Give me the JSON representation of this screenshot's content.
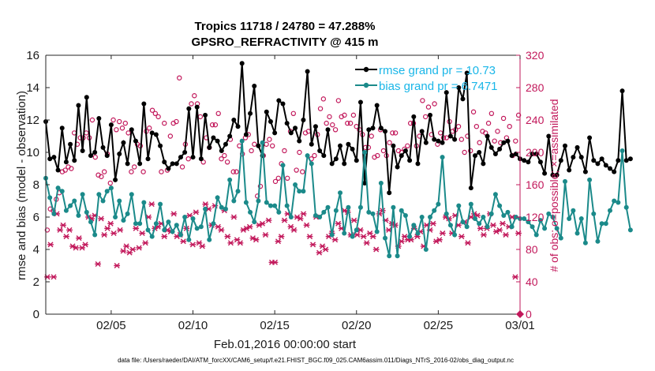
{
  "chart_data": {
    "type": "line",
    "title": "Tropics 11718 / 24780 = 47.288%",
    "subtitle": "GPSRO_REFRACTIVITY @ 415 m",
    "xlabel": "Feb.01,2016 00:00:00 start",
    "ylabel": "rmse and bias (model - observation)",
    "ylabel_right": "# of obs: o=possible; ×=assimilated",
    "footer": "data file: /Users/raeder/DAI/ATM_forcXX/CAM6_setup/f.e21.FHIST_BGC.f09_025.CAM6assim.011/Diags_NTrS_2016-02/obs_diag_output.nc",
    "ylim": [
      0,
      16
    ],
    "ylim_right": [
      0,
      320
    ],
    "xlim": [
      1,
      30
    ],
    "x_ticks": [
      5,
      10,
      15,
      20,
      25,
      30
    ],
    "x_tick_labels": [
      "02/05",
      "02/10",
      "02/15",
      "02/20",
      "02/25",
      "03/01"
    ],
    "y_ticks": [
      0,
      2,
      4,
      6,
      8,
      10,
      12,
      14,
      16
    ],
    "y_tick_labels": [
      "0",
      "2",
      "4",
      "6",
      "8",
      "10",
      "12",
      "14",
      "16"
    ],
    "y_right_ticks": [
      0,
      40,
      80,
      120,
      160,
      200,
      240,
      280,
      320
    ],
    "y_right_tick_labels": [
      "0",
      "40",
      "80",
      "120",
      "160",
      "200",
      "240",
      "280",
      "320"
    ],
    "legend": [
      "rmse grand pr = 10.73",
      "bias grand pr = 6.7471"
    ],
    "x_start": 1.0,
    "x_step": 0.25,
    "series": [
      {
        "name": "rmse",
        "color": "#000000",
        "values": [
          11.9,
          9.6,
          9.7,
          8.9,
          11.5,
          9.4,
          10.5,
          9.5,
          12.9,
          10.1,
          13.4,
          9.8,
          10.0,
          12.1,
          10.3,
          9.8,
          11.7,
          8.3,
          9.9,
          10.6,
          9.3,
          11.4,
          10.7,
          9.3,
          13.0,
          9.6,
          11.2,
          11.1,
          10.4,
          9.4,
          9.0,
          9.3,
          9.3,
          9.7,
          10.0,
          12.7,
          9.7,
          12.8,
          9.6,
          12.3,
          10.3,
          10.9,
          10.7,
          10.1,
          10.5,
          11.0,
          12.0,
          11.6,
          15.5,
          11.1,
          12.4,
          14.1,
          10.4,
          9.8,
          12.5,
          11.9,
          11.2,
          13.2,
          13.0,
          11.8,
          11.2,
          11.5,
          10.7,
          12.0,
          15.0,
          10.5,
          11.6,
          10.1,
          9.8,
          11.4,
          9.3,
          9.6,
          10.4,
          9.3,
          10.5,
          10.2,
          9.5,
          13.1,
          8.1,
          11.4,
          11.5,
          12.9,
          11.5,
          11.3,
          7.5,
          10.4,
          9.1,
          9.8,
          10.1,
          9.5,
          12.2,
          9.3,
          11.3,
          10.6,
          12.3,
          10.8,
          10.7,
          10.6,
          13.7,
          11.0,
          10.8,
          14.0,
          13.3,
          14.9,
          7.8,
          9.8,
          10.0,
          9.3,
          11.0,
          10.3,
          9.9,
          10.2,
          10.6,
          10.7,
          9.8,
          9.9,
          9.6,
          9.5,
          9.4,
          9.9,
          9.9,
          9.4,
          8.7,
          11.0,
          8.6,
          8.6,
          9.5,
          10.4,
          8.9,
          9.7,
          10.3,
          9.7,
          8.8,
          10.9,
          9.5,
          9.3,
          9.6,
          9.2,
          9.0,
          8.8,
          9.5,
          13.8,
          9.5,
          9.6
        ]
      },
      {
        "name": "bias",
        "color": "#1b8a8a",
        "values": [
          8.4,
          7.2,
          6.2,
          7.8,
          7.6,
          6.4,
          6.7,
          7.0,
          6.1,
          7.4,
          6.3,
          5.7,
          4.9,
          7.4,
          7.0,
          7.6,
          7.8,
          6.0,
          7.0,
          5.8,
          6.2,
          7.4,
          5.6,
          5.6,
          6.9,
          5.2,
          4.8,
          5.6,
          6.8,
          5.2,
          5.7,
          5.1,
          5.5,
          4.9,
          6.0,
          4.6,
          5.9,
          5.3,
          5.4,
          6.5,
          4.6,
          5.6,
          7.2,
          6.6,
          6.5,
          8.3,
          7.0,
          7.6,
          10.7,
          6.9,
          6.3,
          5.7,
          7.0,
          10.6,
          6.9,
          6.7,
          6.7,
          6.3,
          9.2,
          6.7,
          6.0,
          8.0,
          7.6,
          7.6,
          9.8,
          9.3,
          6.1,
          6.0,
          6.3,
          6.6,
          4.9,
          6.4,
          7.5,
          5.0,
          6.6,
          4.8,
          5.2,
          6.6,
          10.0,
          6.3,
          6.2,
          5.1,
          8.1,
          4.7,
          3.6,
          6.6,
          3.6,
          6.4,
          6.1,
          4.8,
          5.5,
          5.0,
          6.0,
          4.0,
          6.0,
          6.4,
          6.8,
          9.7,
          6.2,
          5.5,
          4.9,
          6.7,
          5.7,
          5.4,
          6.8,
          5.9,
          5.6,
          6.0,
          5.4,
          6.2,
          7.4,
          6.7,
          6.1,
          6.3,
          5.4,
          6.0,
          5.9,
          5.9,
          5.7,
          5.4,
          4.9,
          5.8,
          5.3,
          6.2,
          6.0,
          5.3,
          4.7,
          8.2,
          5.9,
          6.4,
          5.0,
          5.9,
          4.4,
          8.3,
          6.2,
          4.5,
          5.6,
          5.6,
          6.4,
          7.0,
          6.9,
          10.1,
          6.6,
          5.2
        ]
      }
    ],
    "obs_possible": {
      "color": "#c2185b",
      "marker": "o",
      "values": [
        104,
        130,
        128,
        142,
        150,
        176,
        178,
        182,
        180,
        224,
        210,
        218,
        218,
        224,
        218,
        240,
        194,
        172,
        170,
        176,
        198,
        162,
        240,
        228,
        238,
        230,
        236,
        224,
        176,
        182,
        210,
        208,
        176,
        226,
        230,
        252,
        248,
        244,
        176,
        236,
        178,
        220,
        236,
        238,
        292,
        182,
        210,
        192,
        260,
        270,
        260,
        244,
        188,
        218,
        206,
        234,
        234,
        248,
        192,
        196,
        188,
        216,
        176,
        176,
        208,
        198,
        218,
        222,
        202,
        210,
        146,
        158,
        196,
        210,
        216,
        208,
        164,
        168,
        186,
        202,
        168,
        226,
        248,
        178,
        200,
        176,
        224,
        226,
        192,
        196,
        222,
        254,
        266,
        236,
        244,
        234,
        228,
        264,
        244,
        246,
        236,
        236,
        246,
        232,
        228,
        222,
        206,
        206,
        220,
        194,
        196,
        228,
        202,
        196,
        212,
        224,
        224,
        202,
        200,
        204,
        208,
        236,
        236,
        208,
        220,
        264,
        244,
        256,
        222,
        260,
        210,
        224,
        218,
        218,
        238,
        226,
        228,
        232,
        216,
        200,
        220,
        202,
        250,
        232,
        212,
        226,
        224,
        236,
        248,
        214,
        226,
        212,
        242,
        218,
        232,
        196,
        214,
        246
      ]
    },
    "obs_assimilated": {
      "color": "#c2185b",
      "marker": "x",
      "values": [
        46,
        86,
        46,
        124,
        104,
        110,
        96,
        104,
        84,
        82,
        94,
        82,
        86,
        120,
        118,
        122,
        62,
        118,
        98,
        106,
        112,
        100,
        60,
        104,
        78,
        84,
        76,
        80,
        106,
        82,
        100,
        88,
        120,
        136,
        106,
        108,
        112,
        96,
        104,
        102,
        124,
        96,
        98,
        90,
        106,
        122,
        86,
        126,
        88,
        84,
        136,
        130,
        110,
        134,
        108,
        104,
        128,
        96,
        88,
        120,
        92,
        88,
        104,
        106,
        108,
        94,
        92,
        110,
        112,
        98,
        116,
        64,
        64,
        90,
        96,
        116,
        124,
        108,
        104,
        120,
        118,
        124,
        110,
        96,
        86,
        120,
        76,
        84,
        80,
        96,
        100,
        92,
        112,
        106,
        128,
        126,
        98,
        116,
        98,
        104,
        96,
        88,
        100,
        96,
        80,
        124,
        128,
        116,
        104,
        112,
        110,
        84,
        90,
        96,
        92,
        92,
        106,
        96,
        102,
        84,
        110,
        104,
        112,
        90,
        92,
        100,
        120,
        118,
        100,
        122,
        110,
        96,
        114,
        88,
        120,
        124,
        122,
        106,
        98,
        106,
        124,
        110,
        102,
        104,
        112,
        98,
        108,
        120,
        46,
        100
      ]
    }
  }
}
